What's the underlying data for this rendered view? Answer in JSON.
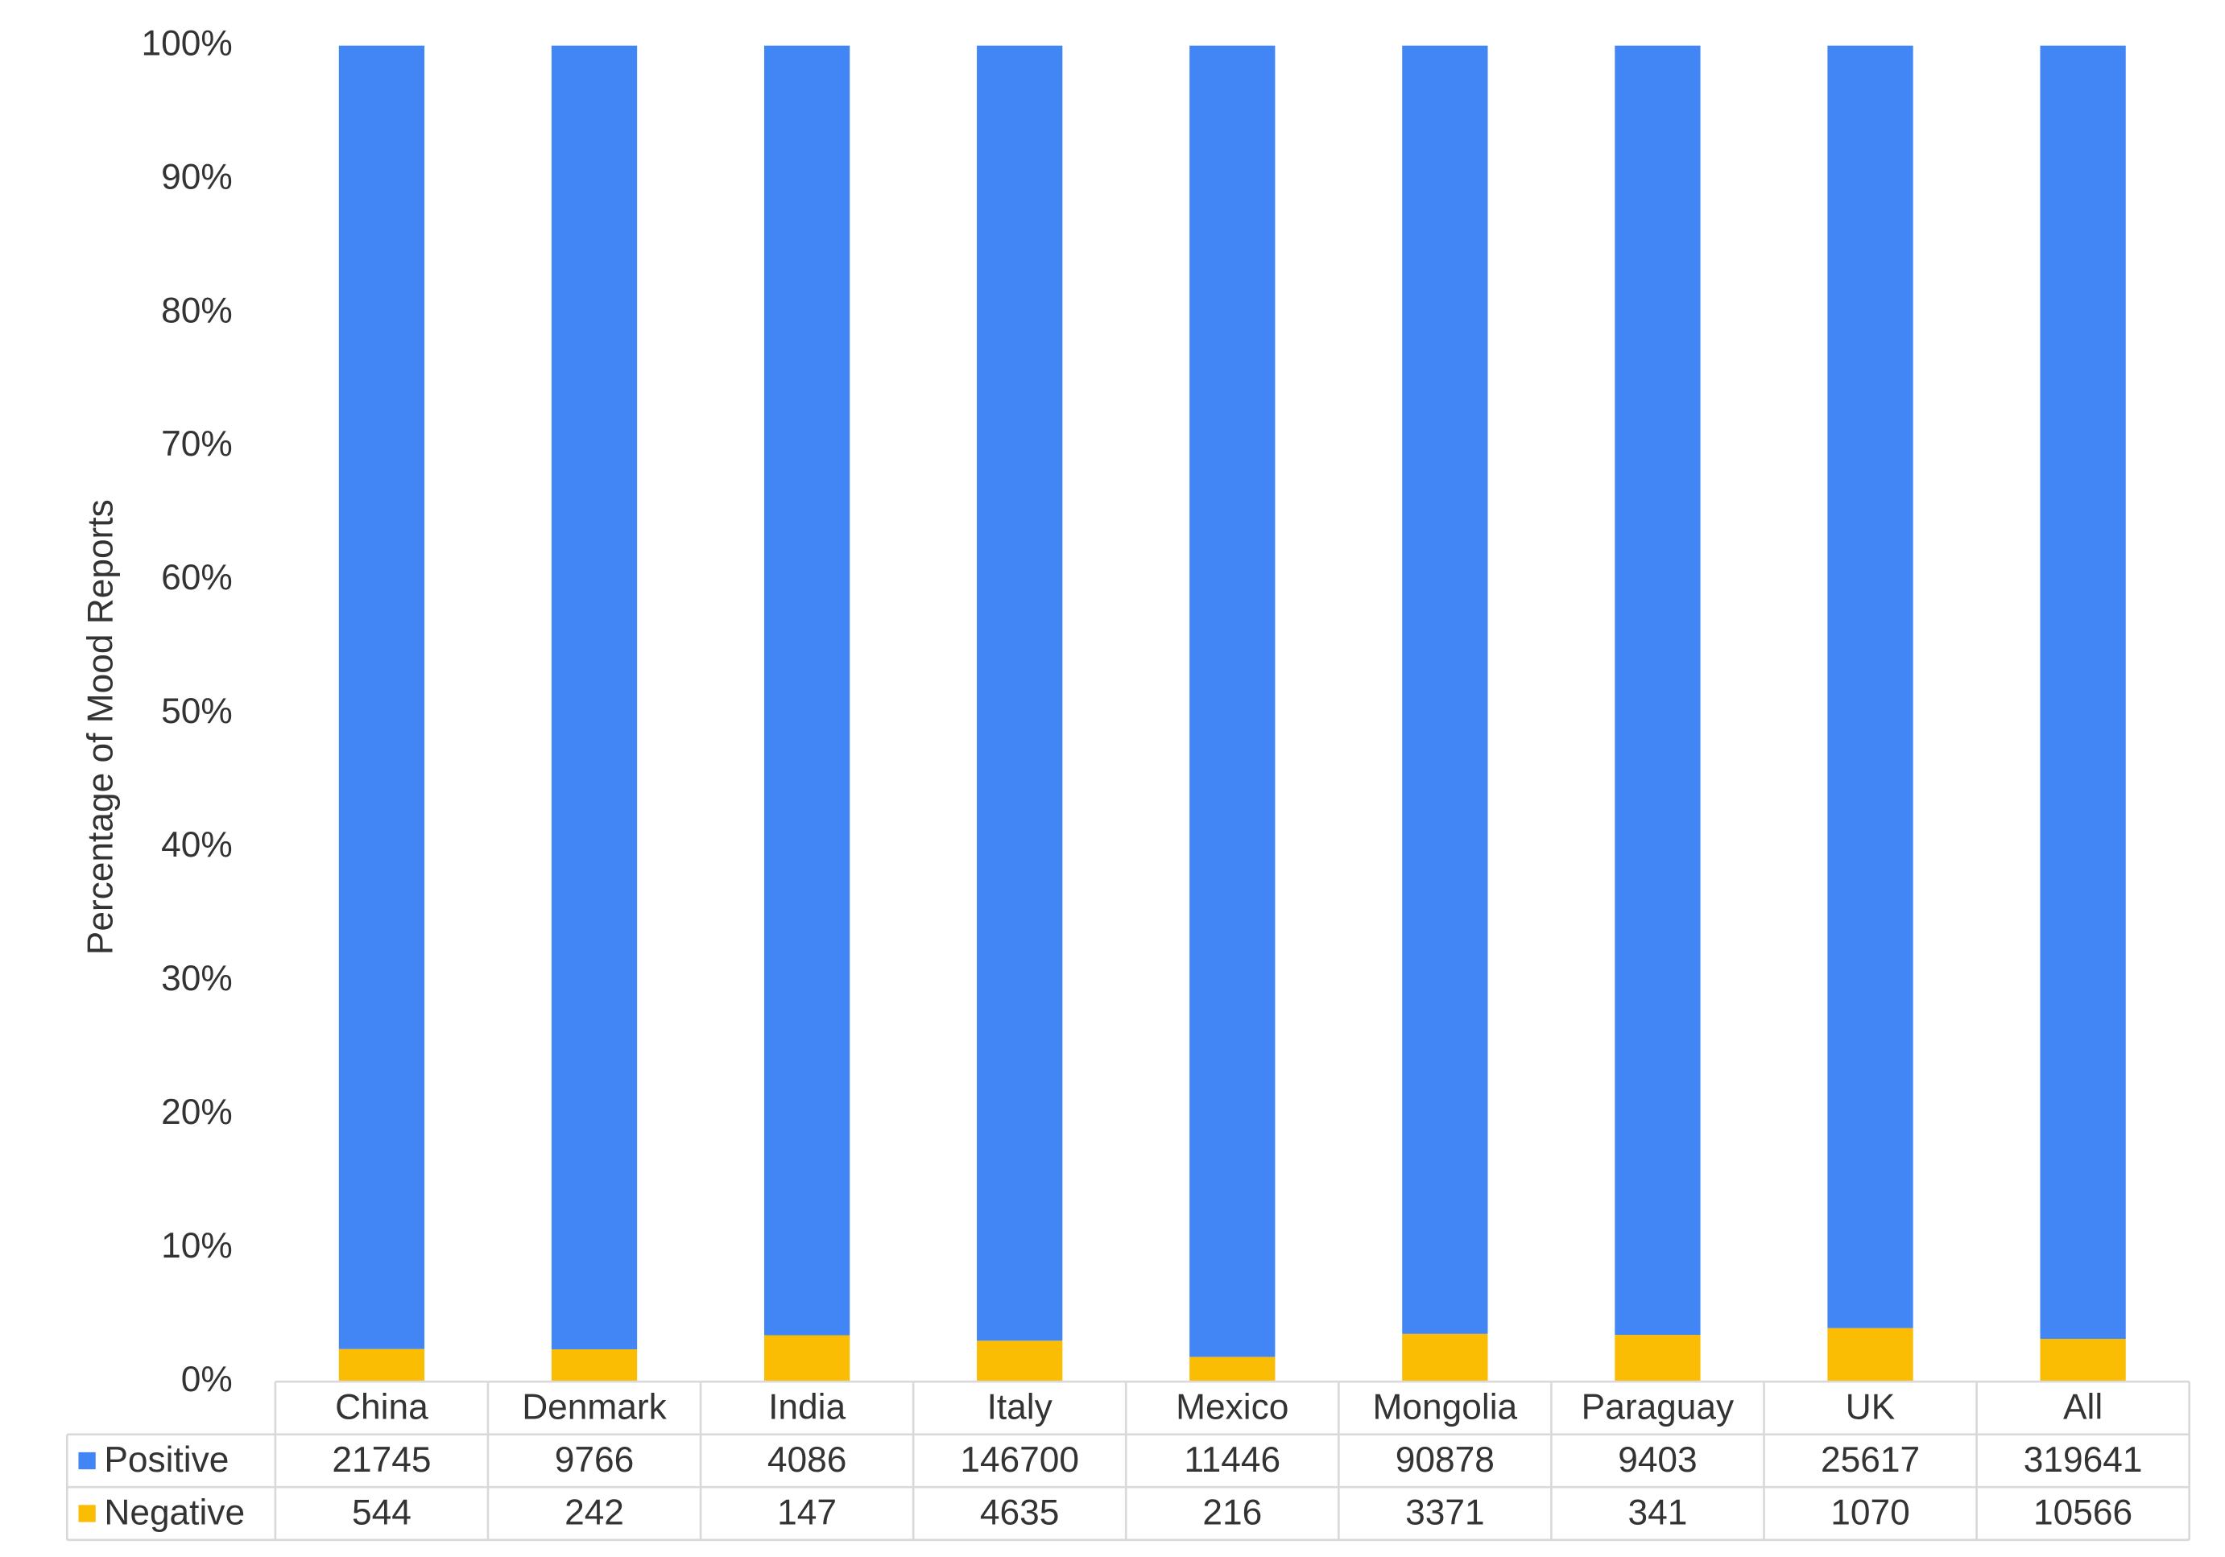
{
  "chart_data": {
    "type": "bar",
    "stacking": "percent",
    "y_label": "Percentage of Mood Reports",
    "categories": [
      "China",
      "Denmark",
      "India",
      "Italy",
      "Mexico",
      "Mongolia",
      "Paraguay",
      "UK",
      "All"
    ],
    "series": [
      {
        "name": "Positive",
        "color": "#4285f4",
        "values": [
          21745,
          9766,
          4086,
          146700,
          11446,
          90878,
          9403,
          25617,
          319641
        ]
      },
      {
        "name": "Negative",
        "color": "#fbbc04",
        "values": [
          544,
          242,
          147,
          4635,
          216,
          3371,
          341,
          1070,
          10566
        ]
      }
    ],
    "ylim": [
      0,
      100
    ],
    "yticks": [
      {
        "value": 0,
        "label": "0%"
      },
      {
        "value": 10,
        "label": "10%"
      },
      {
        "value": 20,
        "label": "20%"
      },
      {
        "value": 30,
        "label": "30%"
      },
      {
        "value": 40,
        "label": "40%"
      },
      {
        "value": 50,
        "label": "50%"
      },
      {
        "value": 60,
        "label": "60%"
      },
      {
        "value": 70,
        "label": "70%"
      },
      {
        "value": 80,
        "label": "80%"
      },
      {
        "value": 90,
        "label": "90%"
      },
      {
        "value": 100,
        "label": "100%"
      }
    ],
    "grid": false,
    "data_table": true
  }
}
